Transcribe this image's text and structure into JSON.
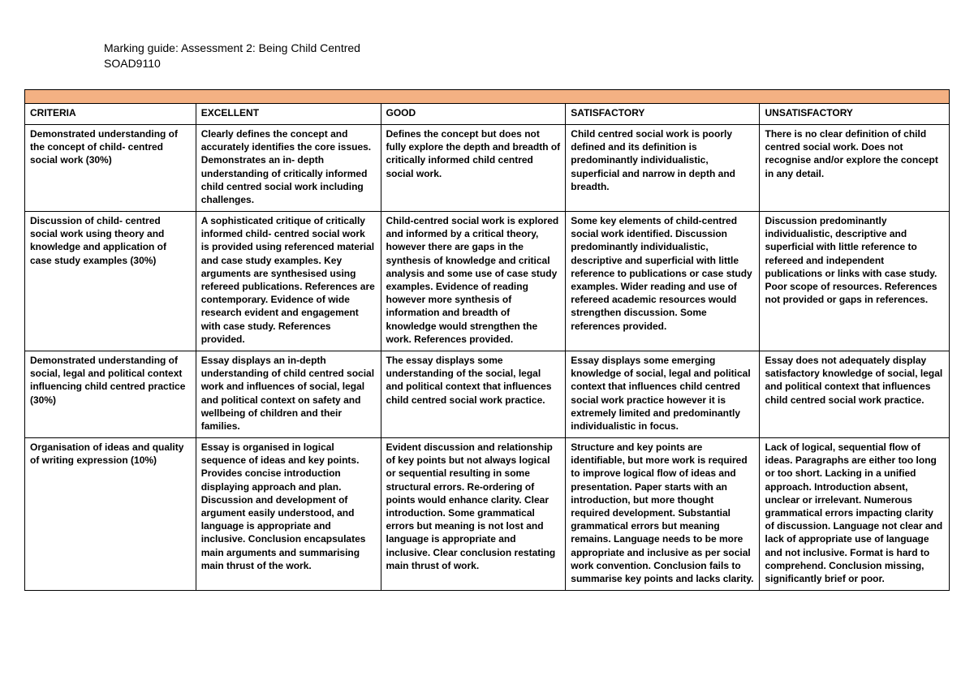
{
  "heading": {
    "line1": "Marking guide: Assessment 2: Being Child Centred",
    "line2": "SOAD9110"
  },
  "colors": {
    "banner_bg": "#f4b183",
    "border": "#000000",
    "text": "#000000",
    "page_bg": "#ffffff"
  },
  "table": {
    "columns": [
      {
        "key": "criteria",
        "label": "CRITERIA"
      },
      {
        "key": "excellent",
        "label": "EXCELLENT"
      },
      {
        "key": "good",
        "label": "GOOD"
      },
      {
        "key": "satisfactory",
        "label": "SATISFACTORY"
      },
      {
        "key": "unsatisfactory",
        "label": "UNSATISFACTORY"
      }
    ],
    "rows": [
      {
        "criteria": "Demonstrated understanding of the concept of child- centred social work (30%)",
        "excellent": "Clearly defines the concept and accurately identifies the core issues. Demonstrates an in- depth understanding of critically informed child centred social work including challenges.",
        "good": "Defines the concept but does not fully explore the depth and breadth of critically informed child centred social work.",
        "satisfactory": "Child centred social work is poorly defined and its definition is predominantly individualistic, superficial and narrow in depth and breadth.",
        "unsatisfactory": "There is no clear definition of child centred social work. Does not recognise and/or explore the concept in any detail."
      },
      {
        "criteria": "Discussion of child- centred social work using theory and knowledge and application of case study examples (30%)",
        "excellent": "A sophisticated critique of critically informed child- centred social work is provided using referenced material and case study examples. Key arguments are synthesised using refereed publications. References are contemporary. Evidence of wide research evident and engagement with case study. References provided.",
        "good": "Child-centred social work is explored and informed by a critical theory, however there are gaps in the synthesis of knowledge and critical analysis and some use of case study examples. Evidence of reading however more synthesis of information and breadth of knowledge would strengthen the work. References provided.",
        "satisfactory": "Some key elements of child-centred social work identified. Discussion predominantly individualistic, descriptive and superficial with little reference to publications or case study examples. Wider reading and use of refereed academic resources would strengthen discussion. Some references provided.",
        "unsatisfactory": "Discussion predominantly individualistic, descriptive and superficial with little reference to refereed and independent publications or links with case study. Poor scope of resources. References not provided or gaps in references."
      },
      {
        "criteria": "Demonstrated understanding of social, legal and political context influencing child centred practice (30%)",
        "excellent": "Essay displays an in-depth understanding of child centred social work and influences of social, legal and political context on safety and wellbeing of children and their families.",
        "good": "The essay displays some understanding of the social, legal and political context that influences child centred social work practice.",
        "satisfactory": "Essay displays some emerging knowledge of social, legal and political context that influences child centred social work practice however it is extremely limited and predominantly individualistic in focus.",
        "unsatisfactory": "Essay does not adequately display satisfactory knowledge of social, legal and political context that influences child centred social work practice."
      },
      {
        "criteria": "Organisation of ideas and quality of writing expression (10%)",
        "excellent": "Essay is organised in logical sequence of ideas and key points. Provides concise introduction displaying approach and plan. Discussion and development of argument easily understood, and language is appropriate and inclusive. Conclusion encapsulates main arguments and summarising main thrust of the work.",
        "good": "Evident discussion and relationship of key points but not always logical or sequential resulting in some structural errors. Re-ordering of points would enhance clarity. Clear introduction. Some grammatical errors but meaning is not lost and language is appropriate and inclusive. Clear conclusion restating main thrust of work.",
        "satisfactory": "Structure and key points are identifiable, but more work is required to improve logical flow of ideas and presentation. Paper starts with an introduction, but more thought required development. Substantial grammatical errors but meaning remains. Language needs to be more appropriate and inclusive as per social work convention. Conclusion fails to summarise key points and lacks clarity.",
        "unsatisfactory": "Lack of logical, sequential flow of ideas. Paragraphs are either too long or too short. Lacking in a\nunified approach. Introduction absent, unclear or irrelevant. Numerous grammatical errors impacting clarity of discussion. Language not clear and lack of appropriate use of language and not inclusive. Format is hard to comprehend. Conclusion missing, significantly brief or poor."
      }
    ]
  }
}
